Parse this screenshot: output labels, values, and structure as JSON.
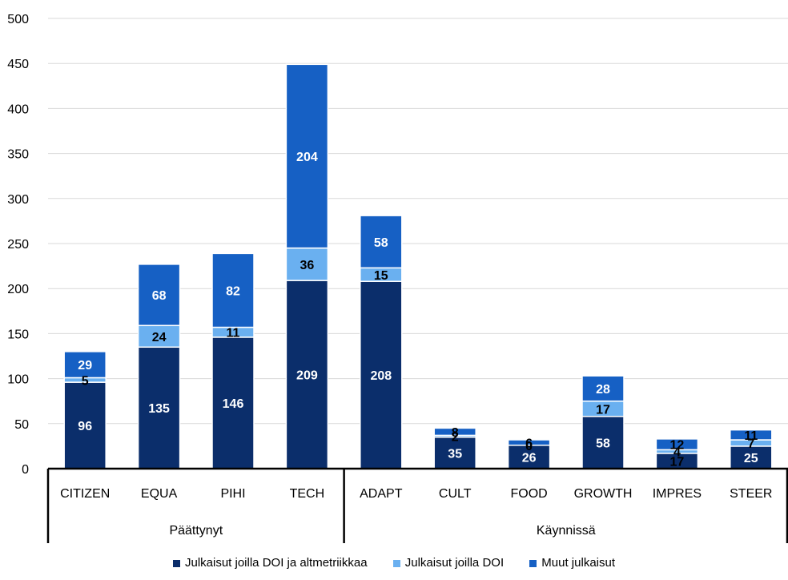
{
  "chart_data": {
    "type": "bar",
    "stacked": true,
    "ylim": [
      0,
      500
    ],
    "yticks": [
      0,
      50,
      100,
      150,
      200,
      250,
      300,
      350,
      400,
      450,
      500
    ],
    "grid": true,
    "categories": [
      "CITIZEN",
      "EQUA",
      "PIHI",
      "TECH",
      "ADAPT",
      "CULT",
      "FOOD",
      "GROWTH",
      "IMPRES",
      "STEER"
    ],
    "groups": [
      {
        "label": "Päättynyt",
        "categories": [
          "CITIZEN",
          "EQUA",
          "PIHI",
          "TECH"
        ]
      },
      {
        "label": "Käynnissä",
        "categories": [
          "ADAPT",
          "CULT",
          "FOOD",
          "GROWTH",
          "IMPRES",
          "STEER"
        ]
      }
    ],
    "series": [
      {
        "name": "Julkaisut joilla DOI ja altmetriikkaa",
        "color": "#0b2e6b",
        "values": [
          96,
          135,
          146,
          209,
          208,
          35,
          26,
          58,
          17,
          25
        ]
      },
      {
        "name": "Julkaisut joilla DOI",
        "color": "#6ab0f0",
        "values": [
          5,
          24,
          11,
          36,
          15,
          2,
          0,
          17,
          4,
          7
        ]
      },
      {
        "name": "Muut julkaisut",
        "color": "#1660c4",
        "values": [
          29,
          68,
          82,
          204,
          58,
          8,
          6,
          28,
          12,
          11
        ]
      }
    ],
    "legend_position": "bottom"
  }
}
